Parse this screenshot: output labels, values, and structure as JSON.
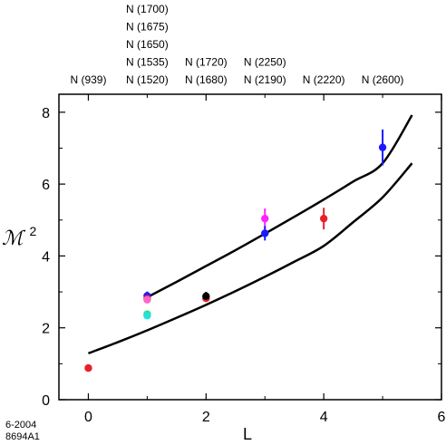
{
  "chart_data": {
    "type": "scatter",
    "xlabel": "L",
    "ylabel_main": "ℳ",
    "ylabel_sup": "2",
    "xlim": [
      -0.5,
      6
    ],
    "ylim": [
      0,
      8.5
    ],
    "xticks": [
      0,
      2,
      4,
      6
    ],
    "yticks": [
      0,
      2,
      4,
      6,
      8
    ],
    "grid": false,
    "state_labels": [
      {
        "L": 0,
        "names": [
          "N (939)"
        ]
      },
      {
        "L": 1,
        "names": [
          "N (1700)",
          "N (1675)",
          "N (1650)",
          "N (1535)",
          "N (1520)"
        ]
      },
      {
        "L": 2,
        "names": [
          "N (1720)",
          "N (1680)"
        ]
      },
      {
        "L": 3,
        "names": [
          "N (2250)",
          "N (2190)"
        ]
      },
      {
        "L": 4,
        "names": [
          "N (2220)"
        ]
      },
      {
        "L": 5,
        "names": [
          "N (2600)"
        ]
      }
    ],
    "points": [
      {
        "x": 0,
        "y": 0.88,
        "err": 0,
        "color": "#e8202a"
      },
      {
        "x": 1,
        "y": 2.89,
        "err": 0.12,
        "color": "#1a1aff"
      },
      {
        "x": 1,
        "y": 2.81,
        "err": 0.05,
        "color": "#e8202a"
      },
      {
        "x": 1,
        "y": 2.78,
        "err": 0,
        "color": "#ff66cc"
      },
      {
        "x": 1,
        "y": 2.38,
        "err": 0,
        "color": "#33dd66"
      },
      {
        "x": 1,
        "y": 2.34,
        "err": 0,
        "color": "#22e0e0"
      },
      {
        "x": 2,
        "y": 2.82,
        "err": 0,
        "color": "#e8202a"
      },
      {
        "x": 2,
        "y": 2.88,
        "err": 0.12,
        "color": "#000000"
      },
      {
        "x": 3,
        "y": 5.04,
        "err": 0.28,
        "color": "#ff22ff"
      },
      {
        "x": 3,
        "y": 4.63,
        "err": 0.2,
        "color": "#1a1aff"
      },
      {
        "x": 4,
        "y": 5.04,
        "err": 0.3,
        "color": "#e8202a"
      },
      {
        "x": 5,
        "y": 7.02,
        "err": 0.5,
        "color": "#1a1aff"
      }
    ],
    "curves": [
      {
        "x": [
          1,
          1.5,
          2,
          2.5,
          3,
          3.5,
          4,
          4.5,
          5,
          5.5
        ],
        "y": [
          2.85,
          3.28,
          3.72,
          4.16,
          4.62,
          5.09,
          5.57,
          6.07,
          6.58,
          7.92
        ]
      },
      {
        "x": [
          0,
          0.5,
          1,
          1.5,
          2,
          2.5,
          3,
          3.5,
          4,
          4.5,
          5,
          5.5
        ],
        "y": [
          1.29,
          1.6,
          1.93,
          2.28,
          2.64,
          3.02,
          3.42,
          3.84,
          4.28,
          4.94,
          5.63,
          6.58
        ]
      }
    ],
    "footer": [
      "6-2004",
      "8694A1"
    ]
  }
}
